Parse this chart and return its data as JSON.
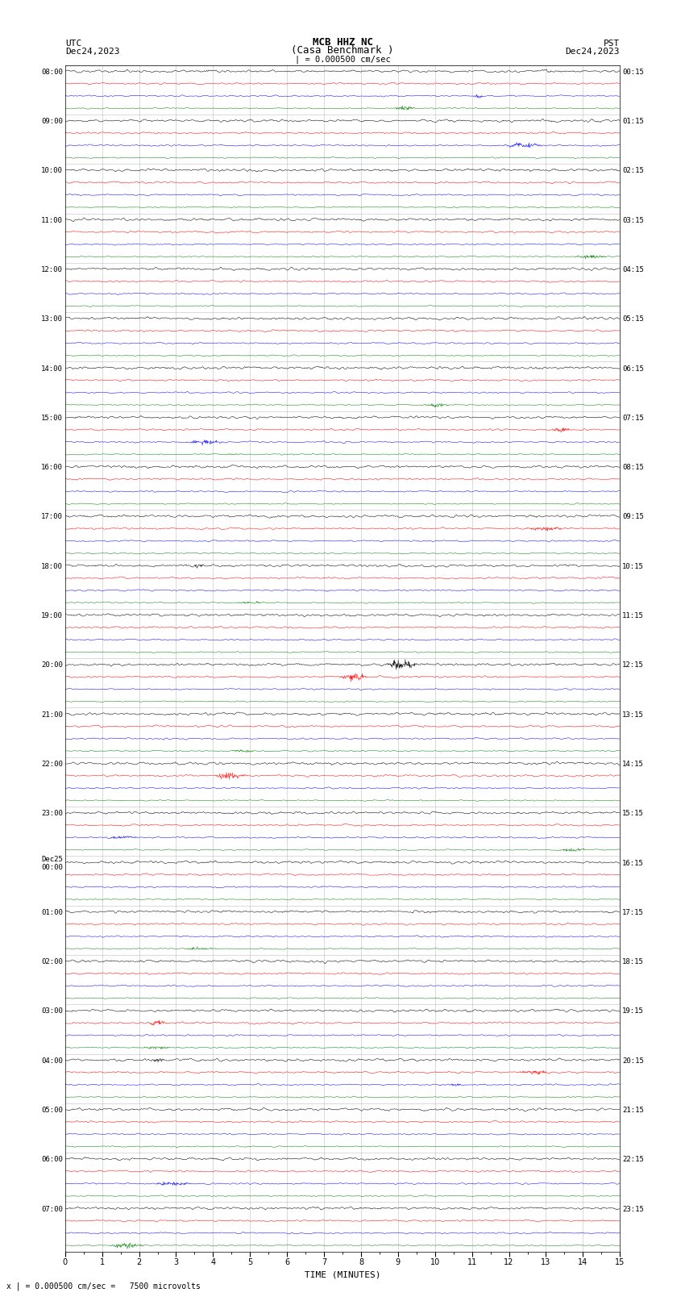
{
  "title_line1": "MCB HHZ NC",
  "title_line2": "(Casa Benchmark )",
  "scale_text": "| = 0.000500 cm/sec",
  "bottom_scale_text": "x | = 0.000500 cm/sec =   7500 microvolts",
  "xlabel": "TIME (MINUTES)",
  "left_label_top": "UTC",
  "left_label_date": "Dec24,2023",
  "right_label_top": "PST",
  "right_label_date": "Dec24,2023",
  "utc_times": [
    "08:00",
    "09:00",
    "10:00",
    "11:00",
    "12:00",
    "13:00",
    "14:00",
    "15:00",
    "16:00",
    "17:00",
    "18:00",
    "19:00",
    "20:00",
    "21:00",
    "22:00",
    "23:00",
    "Dec25\n00:00",
    "01:00",
    "02:00",
    "03:00",
    "04:00",
    "05:00",
    "06:00",
    "07:00"
  ],
  "pst_times": [
    "00:15",
    "01:15",
    "02:15",
    "03:15",
    "04:15",
    "05:15",
    "06:15",
    "07:15",
    "08:15",
    "09:15",
    "10:15",
    "11:15",
    "12:15",
    "13:15",
    "14:15",
    "15:15",
    "16:15",
    "17:15",
    "18:15",
    "19:15",
    "20:15",
    "21:15",
    "22:15",
    "23:15"
  ],
  "trace_color": [
    "black",
    "red",
    "blue",
    "green"
  ],
  "n_hours": 24,
  "n_traces_per_hour": 4,
  "xmin": 0,
  "xmax": 15,
  "xticks": [
    0,
    1,
    2,
    3,
    4,
    5,
    6,
    7,
    8,
    9,
    10,
    11,
    12,
    13,
    14,
    15
  ],
  "fig_width": 8.5,
  "fig_height": 16.13,
  "bg_color": "white"
}
